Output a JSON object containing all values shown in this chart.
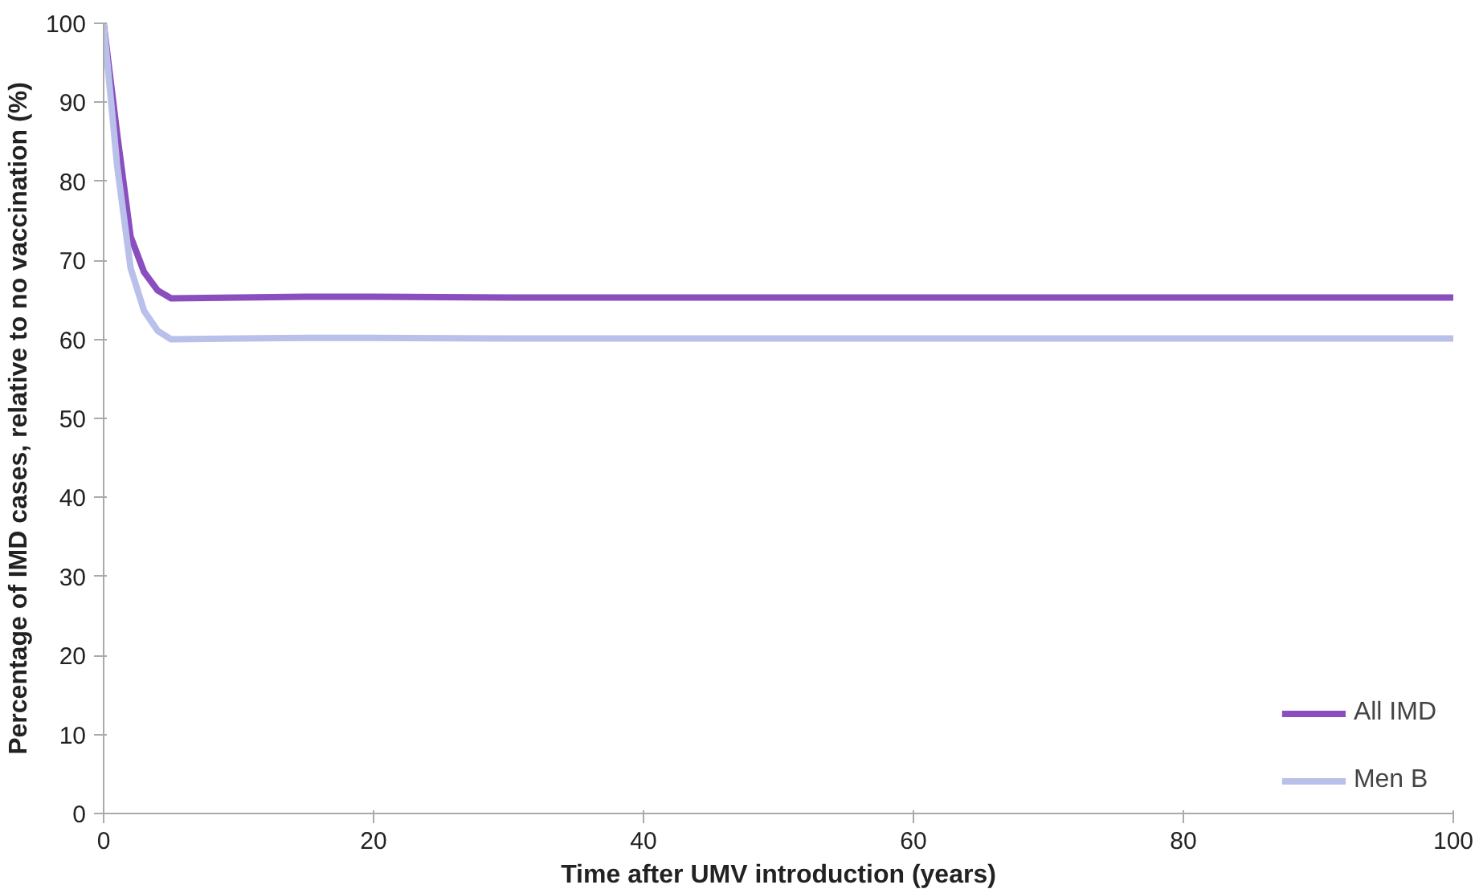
{
  "chart_data": {
    "type": "line",
    "xlabel": "Time after UMV introduction (years)",
    "ylabel": "Percentage of IMD cases, relative to no vaccination (%)",
    "xlim": [
      0,
      100
    ],
    "xticks": [
      0,
      20,
      40,
      60,
      80,
      100
    ],
    "ylim": [
      0,
      100
    ],
    "yticks": [
      0,
      10,
      20,
      30,
      40,
      50,
      60,
      70,
      80,
      90,
      100
    ],
    "grid": false,
    "legend": "bottom right",
    "marker": "none",
    "line_style": "solid",
    "series": [
      {
        "name": "All IMD",
        "color": "#8a4ebf",
        "x": [
          0,
          1,
          2,
          3,
          4,
          5,
          10,
          15,
          20,
          30,
          40,
          50,
          60,
          80,
          100
        ],
        "values": [
          100,
          86,
          73,
          68.5,
          66.2,
          65.2,
          65.3,
          65.4,
          65.4,
          65.3,
          65.3,
          65.3,
          65.3,
          65.3,
          65.3
        ]
      },
      {
        "name": "Men B",
        "color": "#b9c0ea",
        "x": [
          0,
          1,
          2,
          3,
          4,
          5,
          10,
          15,
          20,
          30,
          40,
          50,
          60,
          80,
          100
        ],
        "values": [
          100,
          82,
          69,
          63.6,
          61.1,
          60.0,
          60.1,
          60.2,
          60.2,
          60.1,
          60.1,
          60.1,
          60.1,
          60.1,
          60.1
        ]
      }
    ]
  }
}
